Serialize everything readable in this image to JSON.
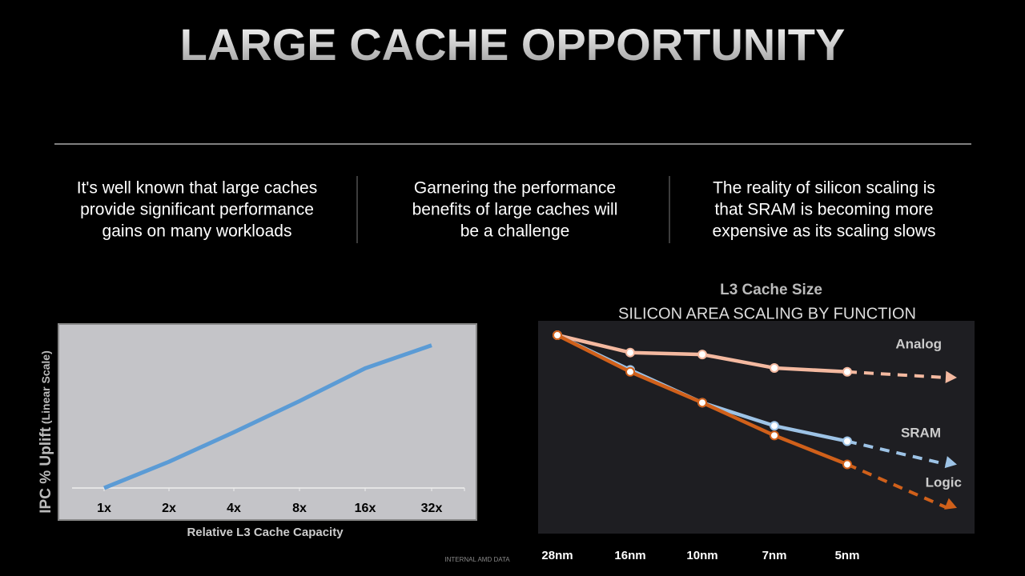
{
  "title": "LARGE CACHE OPPORTUNITY",
  "columns": [
    [
      "It's well known that large caches",
      "provide significant performance",
      "gains on many workloads"
    ],
    [
      "Garnering the performance",
      "benefits of large caches will",
      "be a challenge"
    ],
    [
      "The reality of silicon scaling is",
      "that SRAM is becoming more",
      "expensive as its scaling slows"
    ]
  ],
  "footer": "INTERNAL AMD DATA",
  "chart_data": [
    {
      "type": "line",
      "y_label": "IPC % Uplift",
      "y_label_note": "(Linear Scale)",
      "x_label": "Relative L3 Cache Capacity",
      "categories": [
        "1x",
        "2x",
        "4x",
        "8x",
        "16x",
        "32x"
      ],
      "values": [
        0,
        16,
        34,
        53,
        73,
        87
      ],
      "color": "#5b9bd5",
      "ylim": [
        0,
        100
      ]
    },
    {
      "type": "line",
      "overlay_label": "L3 Cache Size",
      "title": "SILICON AREA SCALING BY FUNCTION",
      "categories": [
        "28nm",
        "16nm",
        "10nm",
        "7nm",
        "5nm"
      ],
      "ylim": [
        0,
        1
      ],
      "series": [
        {
          "name": "Analog",
          "color": "#f4b9a0",
          "values": [
            1,
            0.91,
            0.9,
            0.83,
            0.81
          ]
        },
        {
          "name": "SRAM",
          "color": "#9dc3e6",
          "values": [
            1,
            0.82,
            0.65,
            0.53,
            0.45
          ]
        },
        {
          "name": "Logic",
          "color": "#d0601a",
          "values": [
            1,
            0.81,
            0.65,
            0.48,
            0.33
          ]
        }
      ]
    }
  ]
}
